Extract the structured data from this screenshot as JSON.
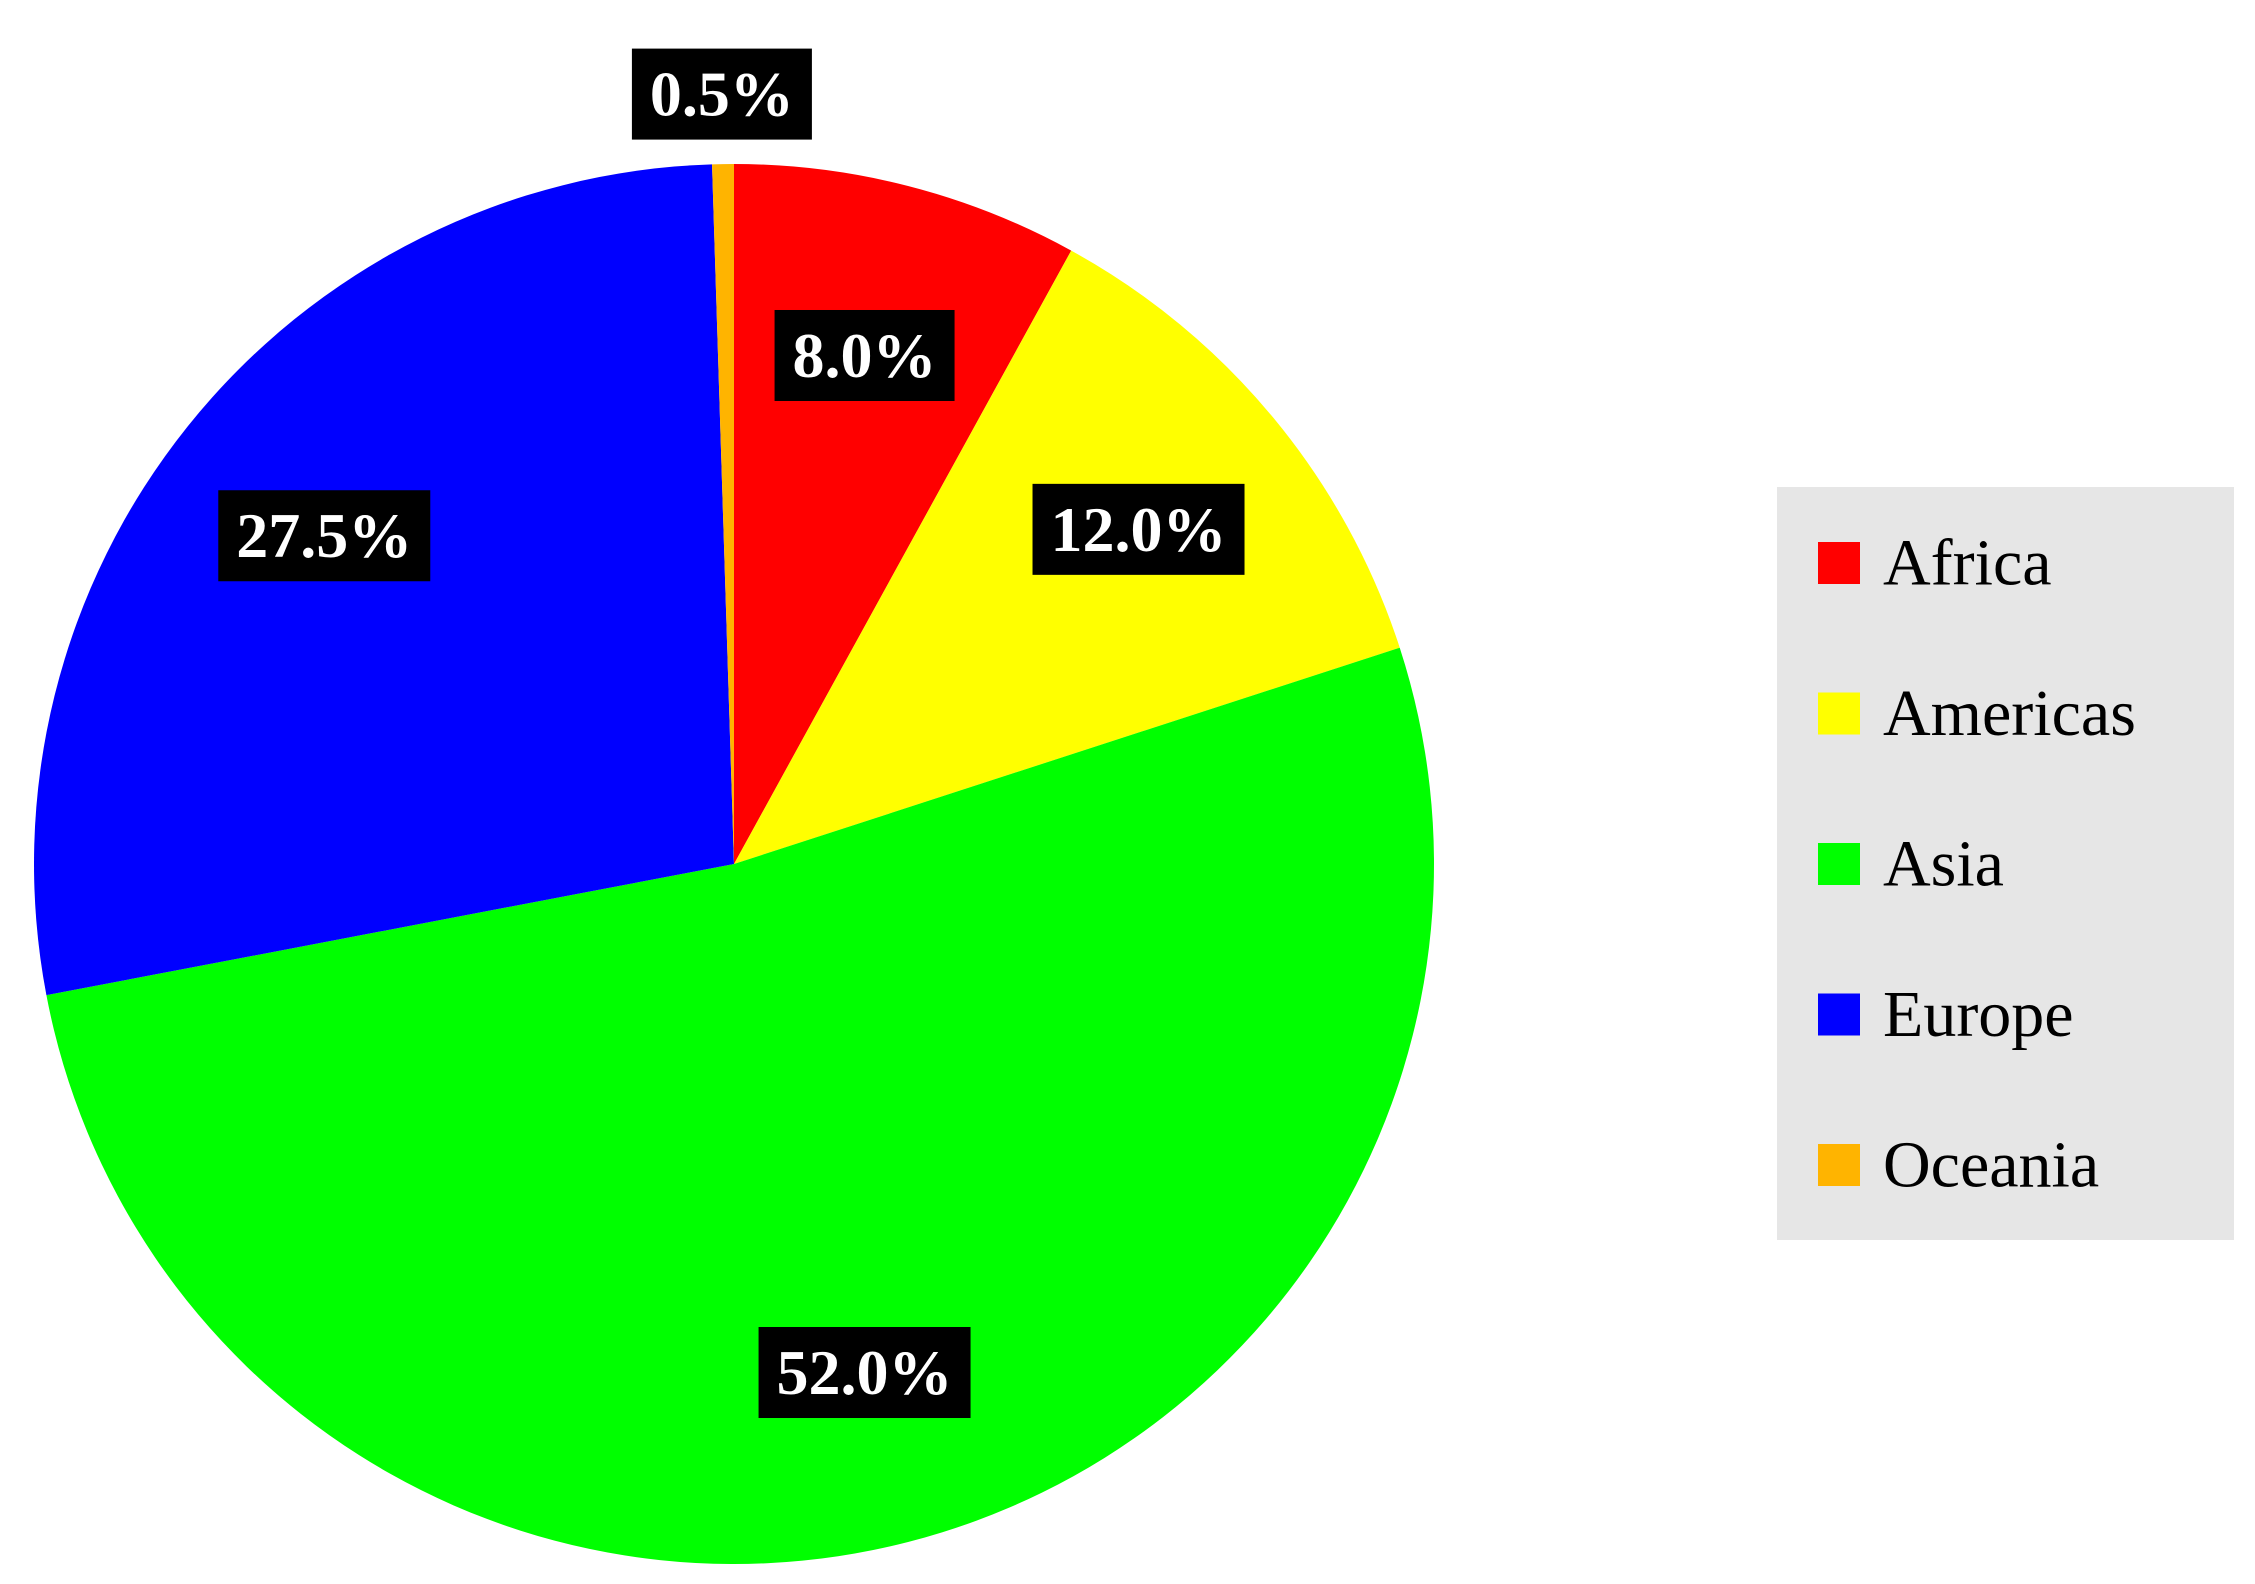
{
  "chart_data": {
    "type": "pie",
    "categories": [
      "Africa",
      "Americas",
      "Asia",
      "Europe",
      "Oceania"
    ],
    "values": [
      8.0,
      12.0,
      52.0,
      27.5,
      0.5
    ],
    "value_labels": [
      "8.0%",
      "12.0%",
      "52.0%",
      "27.5%",
      "0.5%"
    ],
    "colors": [
      "#ff0000",
      "#ffff00",
      "#00ff00",
      "#0000ff",
      "#ffb400"
    ],
    "legend": "right"
  }
}
